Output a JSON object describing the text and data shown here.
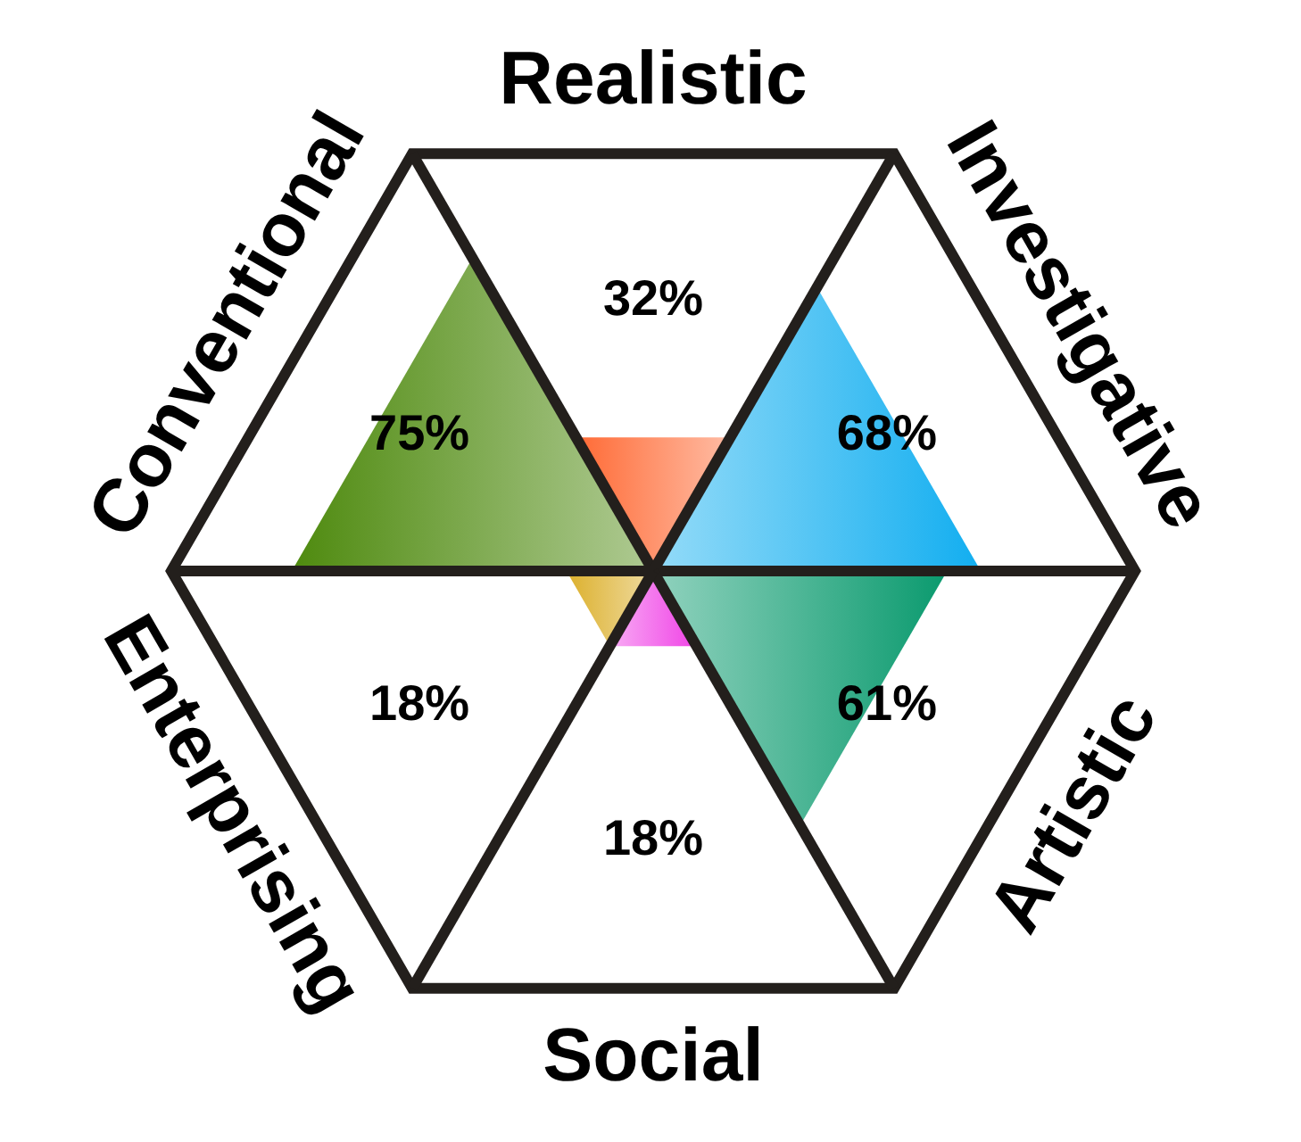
{
  "chart_data": {
    "type": "other",
    "categories": [
      "Realistic",
      "Investigative",
      "Artistic",
      "Social",
      "Enterprising",
      "Conventional"
    ],
    "values": [
      32,
      68,
      61,
      18,
      18,
      75
    ],
    "value_labels": [
      "32%",
      "68%",
      "61%",
      "18%",
      "18%",
      "75%"
    ],
    "colors": [
      "#ff6a35",
      "#12aef0",
      "#0a9a6e",
      "#f044e6",
      "#dcb02c",
      "#4e8a0e"
    ]
  }
}
